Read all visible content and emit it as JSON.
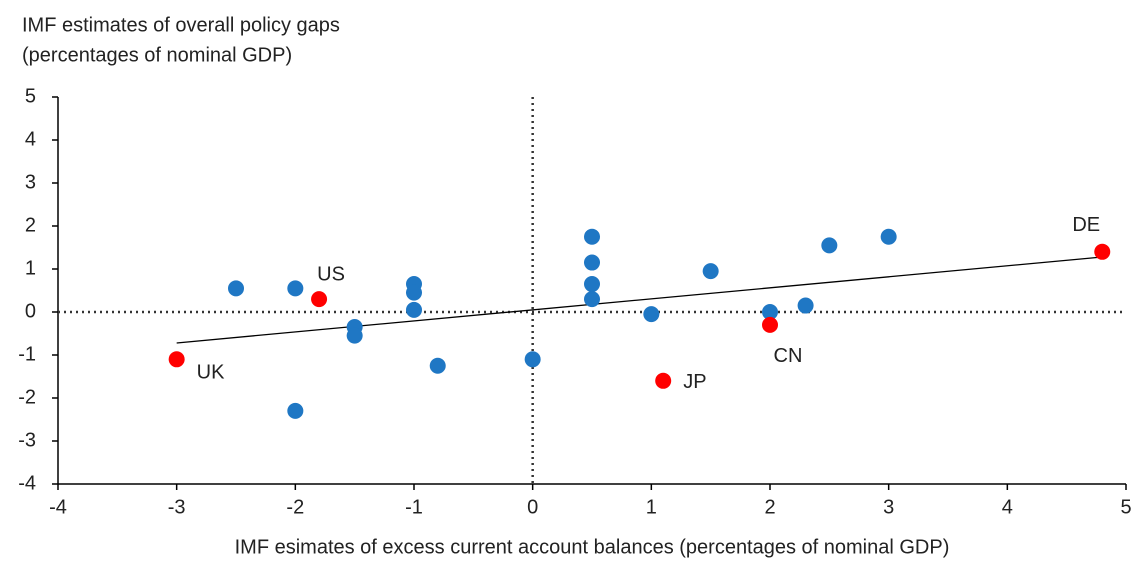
{
  "chart_data": {
    "type": "scatter",
    "title": [
      "IMF estimates of overall policy gaps",
      "(percentages of nominal GDP)"
    ],
    "x_label": "IMF esimates of excess current account balances (percentages of nominal GDP)",
    "xlim": [
      -4,
      5
    ],
    "xticks": [
      -4,
      -3,
      -2,
      -1,
      0,
      1,
      2,
      3,
      4,
      5
    ],
    "ylim": [
      -4,
      5
    ],
    "yticks": [
      -4,
      -3,
      -2,
      -1,
      0,
      1,
      2,
      3,
      4,
      5
    ],
    "series": [
      {
        "color": "#1f77c4",
        "x": [
          -2.5,
          -2,
          -2,
          -1.5,
          -1.5,
          -1,
          -1,
          -1,
          -0.8,
          0,
          0.5,
          0.5,
          0.5,
          0.5,
          1,
          1.5,
          2,
          2.3,
          2.5,
          3
        ],
        "values": [
          0.55,
          0.55,
          -2.3,
          -0.35,
          -0.55,
          0.65,
          0.45,
          0.05,
          -1.25,
          -1.1,
          1.75,
          1.15,
          0.65,
          0.3,
          -0.05,
          0.95,
          0.0,
          0.15,
          1.55,
          1.75
        ]
      },
      {
        "color": "#ff0000",
        "x": [
          -3,
          -1.8,
          1.1,
          2,
          4.8
        ],
        "values": [
          -1.1,
          0.3,
          -1.6,
          -0.3,
          1.4
        ],
        "labels": [
          "UK",
          "US",
          "JP",
          "CN",
          "DE"
        ]
      }
    ],
    "trend": {
      "x": [
        -3,
        4.8
      ],
      "values": [
        -0.72,
        1.28
      ],
      "color": "#000000"
    }
  }
}
